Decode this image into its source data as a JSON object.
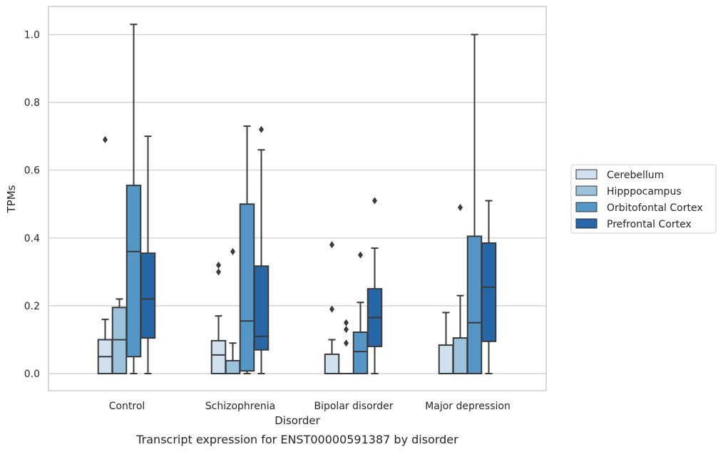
{
  "chart_data": {
    "type": "box",
    "caption": "Transcript expression for ENST00000591387 by disorder",
    "xlabel": "Disorder",
    "ylabel": "TPMs",
    "ylim": [
      -0.05,
      1.08
    ],
    "yticks": [
      0.0,
      0.2,
      0.4,
      0.6,
      0.8,
      1.0
    ],
    "ytick_labels": [
      "0.0",
      "0.2",
      "0.4",
      "0.6",
      "0.8",
      "1.0"
    ],
    "grid": "horizontal",
    "legend_position": "right",
    "categories": [
      "Control",
      "Schizophrenia",
      "Bipolar disorder",
      "Major depression"
    ],
    "series": [
      {
        "name": "Cerebellum",
        "color": "#d0e0ef",
        "boxes": [
          {
            "whislo": 0.0,
            "q1": 0.0,
            "med": 0.05,
            "q3": 0.1,
            "whishi": 0.16,
            "fliers": [
              0.69
            ]
          },
          {
            "whislo": 0.0,
            "q1": 0.0,
            "med": 0.055,
            "q3": 0.097,
            "whishi": 0.17,
            "fliers": [
              0.3,
              0.32
            ]
          },
          {
            "whislo": 0.0,
            "q1": 0.0,
            "med": 0.0,
            "q3": 0.057,
            "whishi": 0.1,
            "fliers": [
              0.19,
              0.38
            ]
          },
          {
            "whislo": 0.0,
            "q1": 0.0,
            "med": 0.0,
            "q3": 0.084,
            "whishi": 0.18,
            "fliers": []
          }
        ]
      },
      {
        "name": "Hipppocampus",
        "color": "#9cc3dc",
        "boxes": [
          {
            "whislo": 0.0,
            "q1": 0.0,
            "med": 0.1,
            "q3": 0.195,
            "whishi": 0.22,
            "fliers": []
          },
          {
            "whislo": 0.0,
            "q1": 0.0,
            "med": 0.0,
            "q3": 0.038,
            "whishi": 0.09,
            "fliers": [
              0.36
            ]
          },
          {
            "whislo": 0.0,
            "q1": 0.0,
            "med": 0.0,
            "q3": 0.0,
            "whishi": 0.0,
            "fliers": [
              0.09,
              0.13,
              0.15
            ]
          },
          {
            "whislo": 0.0,
            "q1": 0.0,
            "med": 0.0,
            "q3": 0.105,
            "whishi": 0.23,
            "fliers": [
              0.49
            ]
          }
        ]
      },
      {
        "name": "Orbitofontal Cortex",
        "color": "#5497c6",
        "boxes": [
          {
            "whislo": 0.0,
            "q1": 0.05,
            "med": 0.36,
            "q3": 0.555,
            "whishi": 1.03,
            "fliers": []
          },
          {
            "whislo": 0.0,
            "q1": 0.008,
            "med": 0.155,
            "q3": 0.5,
            "whishi": 0.73,
            "fliers": []
          },
          {
            "whislo": 0.0,
            "q1": 0.0,
            "med": 0.065,
            "q3": 0.122,
            "whishi": 0.21,
            "fliers": [
              0.35
            ]
          },
          {
            "whislo": 0.0,
            "q1": 0.0,
            "med": 0.15,
            "q3": 0.405,
            "whishi": 1.0,
            "fliers": []
          }
        ]
      },
      {
        "name": "Prefrontal Cortex",
        "color": "#2767a8",
        "boxes": [
          {
            "whislo": 0.0,
            "q1": 0.105,
            "med": 0.22,
            "q3": 0.355,
            "whishi": 0.7,
            "fliers": []
          },
          {
            "whislo": 0.0,
            "q1": 0.07,
            "med": 0.11,
            "q3": 0.317,
            "whishi": 0.66,
            "fliers": [
              0.72
            ]
          },
          {
            "whislo": 0.0,
            "q1": 0.08,
            "med": 0.165,
            "q3": 0.25,
            "whishi": 0.37,
            "fliers": [
              0.51
            ]
          },
          {
            "whislo": 0.0,
            "q1": 0.095,
            "med": 0.255,
            "q3": 0.385,
            "whishi": 0.51,
            "fliers": []
          }
        ]
      }
    ]
  }
}
